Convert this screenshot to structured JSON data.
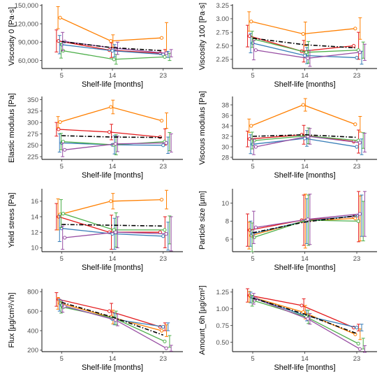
{
  "styles": {
    "series_colors": [
      "#e41a1c",
      "#ff7f00",
      "#377eb8",
      "#4daf4a",
      "#984ea3"
    ],
    "mean_color": "#000000"
  },
  "chart_data": [
    {
      "type": "line",
      "xlabel": "Shelf-life [months]",
      "ylabel": "Viscosity 0 [Pa·s]",
      "x": [
        5,
        14,
        23
      ],
      "xlim": [
        1.5,
        26.5
      ],
      "ylim": [
        47000,
        152000
      ],
      "yticks": [
        60000,
        90000,
        120000,
        150000
      ],
      "ytick_labels": [
        "60,000",
        "90,000",
        "120,000",
        "150,000"
      ],
      "series": [
        {
          "values": [
            92000,
            77000,
            72000
          ],
          "err": [
            18000,
            12000,
            6000
          ]
        },
        {
          "values": [
            130000,
            92000,
            97000
          ],
          "err": [
            18000,
            10000,
            25000
          ]
        },
        {
          "values": [
            86000,
            76000,
            70000
          ],
          "err": [
            15000,
            10000,
            5000
          ]
        },
        {
          "values": [
            76000,
            62000,
            66000
          ],
          "err": [
            12000,
            8000,
            6000
          ]
        },
        {
          "values": [
            91000,
            80000,
            72000
          ],
          "err": [
            15000,
            10000,
            6000
          ]
        }
      ],
      "mean": [
        91000,
        81000,
        76000
      ]
    },
    {
      "type": "line",
      "xlabel": "Shelf-life [months]",
      "ylabel": "Viscosity 100 [Pa·s]",
      "x": [
        5,
        14,
        23
      ],
      "xlim": [
        1.5,
        26.5
      ],
      "ylim": [
        2.08,
        3.27
      ],
      "yticks": [
        2.25,
        2.5,
        2.75,
        3.0,
        3.25
      ],
      "ytick_labels": [
        "2.25",
        "2.50",
        "2.75",
        "3.00",
        "3.25"
      ],
      "series": [
        {
          "values": [
            2.68,
            2.4,
            2.5
          ],
          "err": [
            0.2,
            0.2,
            0.25
          ]
        },
        {
          "values": [
            2.95,
            2.72,
            2.82
          ],
          "err": [
            0.18,
            0.22,
            0.2
          ]
        },
        {
          "values": [
            2.55,
            2.32,
            2.28
          ],
          "err": [
            0.18,
            0.15,
            0.12
          ]
        },
        {
          "values": [
            2.62,
            2.38,
            2.42
          ],
          "err": [
            0.15,
            0.2,
            0.15
          ]
        },
        {
          "values": [
            2.42,
            2.27,
            2.38
          ],
          "err": [
            0.18,
            0.15,
            0.15
          ]
        }
      ],
      "mean": [
        2.64,
        2.52,
        2.46
      ]
    },
    {
      "type": "line",
      "xlabel": "Shelf-life [months]",
      "ylabel": "Elastic modulus [Pa]",
      "x": [
        5,
        14,
        23
      ],
      "xlim": [
        1.5,
        26.5
      ],
      "ylim": [
        219,
        357
      ],
      "yticks": [
        225,
        250,
        275,
        300,
        325,
        350
      ],
      "ytick_labels": [
        "225",
        "250",
        "275",
        "300",
        "325",
        "350"
      ],
      "series": [
        {
          "values": [
            285,
            279,
            268
          ],
          "err": [
            15,
            17,
            18
          ]
        },
        {
          "values": [
            301,
            334,
            304
          ],
          "err": [
            12,
            15,
            17
          ]
        },
        {
          "values": [
            255,
            251,
            250
          ],
          "err": [
            20,
            20,
            18
          ]
        },
        {
          "values": [
            258,
            251,
            258
          ],
          "err": [
            18,
            22,
            20
          ]
        },
        {
          "values": [
            240,
            253,
            255
          ],
          "err": [
            15,
            17,
            20
          ]
        }
      ],
      "mean": [
        271,
        268,
        267
      ]
    },
    {
      "type": "line",
      "xlabel": "Shelf-life [months]",
      "ylabel": "Viscous modulus [Pa]",
      "x": [
        5,
        14,
        23
      ],
      "xlim": [
        1.5,
        26.5
      ],
      "ylim": [
        27.6,
        39.6
      ],
      "yticks": [
        28,
        30,
        32,
        34,
        36,
        38
      ],
      "ytick_labels": [
        "28",
        "30",
        "32",
        "34",
        "36",
        "38"
      ],
      "series": [
        {
          "values": [
            31.5,
            32.3,
            31.0
          ],
          "err": [
            1.5,
            1.8,
            2.2
          ]
        },
        {
          "values": [
            34.0,
            38.0,
            34.3
          ],
          "err": [
            1.3,
            1.2,
            1.5
          ]
        },
        {
          "values": [
            30.5,
            31.6,
            30.0
          ],
          "err": [
            1.8,
            1.5,
            1.5
          ]
        },
        {
          "values": [
            31.2,
            32.1,
            31.2
          ],
          "err": [
            1.6,
            1.5,
            1.5
          ]
        },
        {
          "values": [
            30.0,
            32.0,
            30.8
          ],
          "err": [
            1.5,
            1.5,
            1.8
          ]
        }
      ],
      "mean": [
        32.0,
        32.3,
        31.8
      ]
    },
    {
      "type": "line",
      "xlabel": "Shelf-life [months]",
      "ylabel": "Yield stress [Pa]",
      "x": [
        5,
        14,
        23
      ],
      "xlim": [
        1.5,
        26.5
      ],
      "ylim": [
        9.5,
        17.6
      ],
      "yticks": [
        10,
        12,
        14,
        16
      ],
      "ytick_labels": [
        "10",
        "12",
        "14",
        "16"
      ],
      "series": [
        {
          "values": [
            14.0,
            12.0,
            12.0
          ],
          "err": [
            1.7,
            2.2,
            2.0
          ]
        },
        {
          "values": [
            14.3,
            16.0,
            16.2
          ],
          "err": [
            2.0,
            1.0,
            1.2
          ]
        },
        {
          "values": [
            12.5,
            11.8,
            11.5
          ],
          "err": [
            1.7,
            2.0,
            1.8
          ]
        },
        {
          "values": [
            14.4,
            12.3,
            12.3
          ],
          "err": [
            1.8,
            2.2,
            1.8
          ]
        },
        {
          "values": [
            11.3,
            12.0,
            11.8
          ],
          "err": [
            1.5,
            2.0,
            2.2
          ]
        }
      ],
      "mean": [
        13.0,
        12.9,
        12.8
      ]
    },
    {
      "type": "line",
      "xlabel": "Shelf-life [months]",
      "ylabel": "Particle size [µm]",
      "x": [
        5,
        14,
        23
      ],
      "xlim": [
        1.5,
        26.5
      ],
      "ylim": [
        4.6,
        11.6
      ],
      "yticks": [
        6,
        8,
        10
      ],
      "ytick_labels": [
        "6",
        "8",
        "10"
      ],
      "series": [
        {
          "values": [
            7.0,
            8.1,
            8.5
          ],
          "err": [
            1.8,
            2.8,
            2.8
          ]
        },
        {
          "values": [
            6.4,
            8.0,
            8.3
          ],
          "err": [
            1.5,
            3.0,
            2.5
          ]
        },
        {
          "values": [
            6.6,
            8.0,
            8.6
          ],
          "err": [
            1.4,
            2.5,
            2.3
          ]
        },
        {
          "values": [
            6.2,
            8.1,
            8.0
          ],
          "err": [
            1.6,
            2.8,
            2.2
          ]
        },
        {
          "values": [
            7.3,
            8.2,
            8.8
          ],
          "err": [
            1.8,
            2.8,
            2.5
          ]
        }
      ],
      "mean": [
        6.7,
        7.9,
        8.6
      ]
    },
    {
      "type": "line",
      "xlabel": "Shelf-life [months]",
      "ylabel": "Flux [µg/cm²/√h]",
      "x": [
        5,
        14,
        23
      ],
      "xlim": [
        1.5,
        26.5
      ],
      "ylim": [
        185,
        830
      ],
      "yticks": [
        200,
        400,
        600,
        800
      ],
      "ytick_labels": [
        "200",
        "400",
        "600",
        "800"
      ],
      "series": [
        {
          "values": [
            720,
            600,
            440
          ],
          "err": [
            70,
            80,
            40
          ]
        },
        {
          "values": [
            680,
            540,
            400
          ],
          "err": [
            60,
            70,
            60
          ]
        },
        {
          "values": [
            660,
            520,
            440
          ],
          "err": [
            60,
            60,
            40
          ]
        },
        {
          "values": [
            640,
            530,
            290
          ],
          "err": [
            60,
            70,
            60
          ]
        },
        {
          "values": [
            650,
            510,
            220
          ],
          "err": [
            60,
            60,
            30
          ]
        }
      ],
      "mean": [
        690,
        540,
        355
      ]
    },
    {
      "type": "line",
      "xlabel": "Shelf-life [months]",
      "ylabel": "Amount_6h [µg/cm²]",
      "x": [
        5,
        14,
        23
      ],
      "xlim": [
        1.5,
        26.5
      ],
      "ylim": [
        0.36,
        1.3
      ],
      "yticks": [
        0.5,
        0.75,
        1.0,
        1.25
      ],
      "ytick_labels": [
        "0.50",
        "0.75",
        "1.00",
        "1.25"
      ],
      "series": [
        {
          "values": [
            1.2,
            1.05,
            0.72
          ],
          "err": [
            0.1,
            0.1,
            0.05
          ]
        },
        {
          "values": [
            1.18,
            0.95,
            0.62
          ],
          "err": [
            0.08,
            0.1,
            0.08
          ]
        },
        {
          "values": [
            1.17,
            0.9,
            0.72
          ],
          "err": [
            0.08,
            0.08,
            0.05
          ]
        },
        {
          "values": [
            1.12,
            0.88,
            0.48
          ],
          "err": [
            0.08,
            0.1,
            0.08
          ]
        },
        {
          "values": [
            1.15,
            0.85,
            0.4
          ],
          "err": [
            0.08,
            0.08,
            0.05
          ]
        }
      ],
      "mean": [
        1.16,
        0.92,
        0.63
      ]
    }
  ]
}
